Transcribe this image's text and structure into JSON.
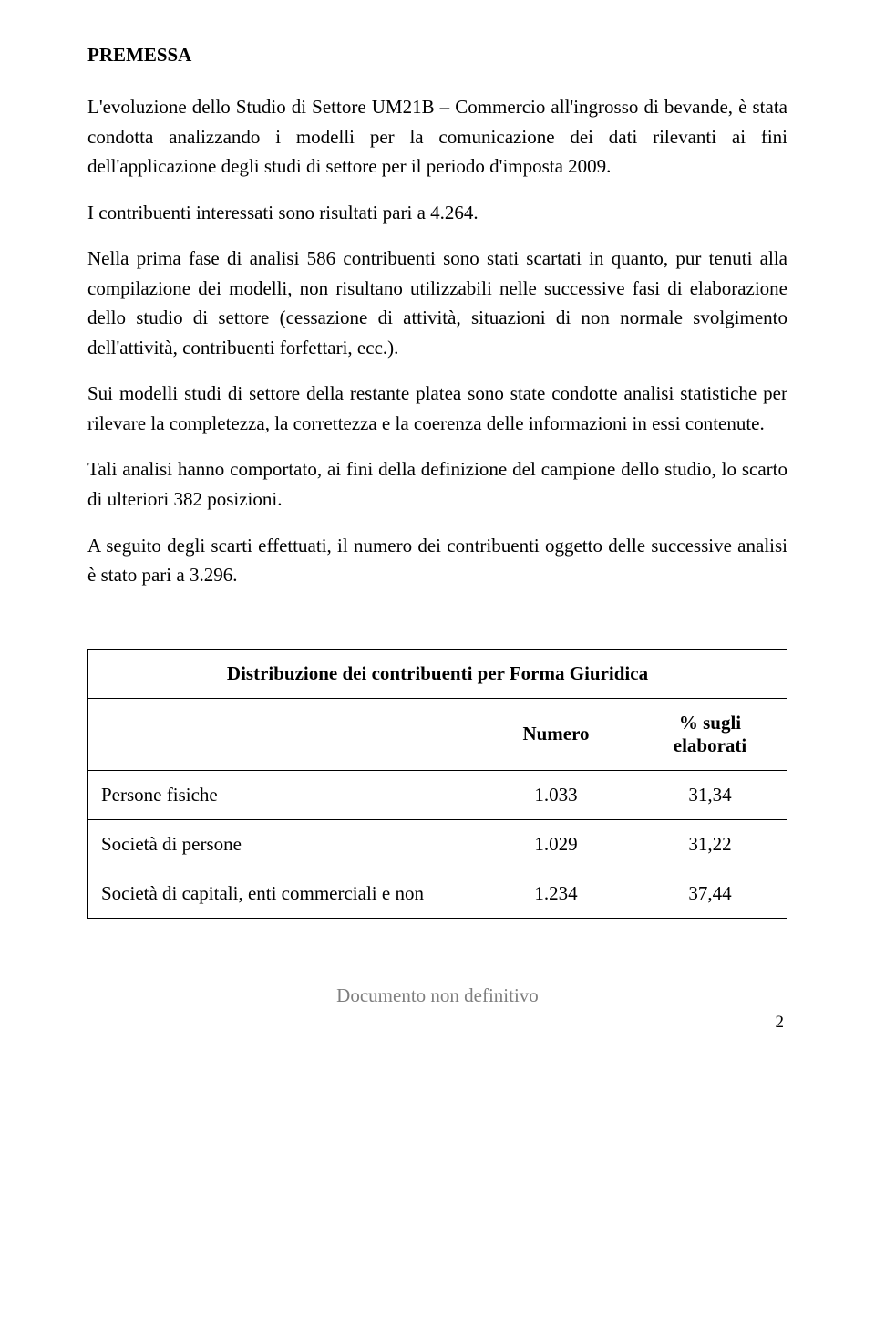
{
  "heading": "PREMESSA",
  "paragraphs": {
    "p1": "L'evoluzione dello Studio di Settore UM21B – Commercio all'ingrosso di bevande, è stata condotta analizzando i modelli per la comunicazione dei dati rilevanti ai fini dell'applicazione degli studi di settore per il periodo d'imposta 2009.",
    "p2": "I contribuenti interessati sono risultati pari a 4.264.",
    "p3": "Nella prima fase di analisi 586 contribuenti sono stati scartati in quanto, pur tenuti alla compilazione dei modelli, non risultano utilizzabili nelle successive fasi di elaborazione dello studio di settore (cessazione di attività, situazioni di non normale svolgimento dell'attività, contribuenti forfettari, ecc.).",
    "p4": "Sui modelli studi di settore della restante platea sono state condotte analisi statistiche per rilevare la completezza, la correttezza e la coerenza delle informazioni in essi contenute.",
    "p5": "Tali analisi hanno comportato, ai fini della definizione del campione dello studio, lo scarto di ulteriori 382 posizioni.",
    "p6": "A seguito degli scarti effettuati, il numero dei contribuenti oggetto delle successive analisi è stato pari a 3.296."
  },
  "table": {
    "title": "Distribuzione dei contribuenti per Forma Giuridica",
    "col_number": "Numero",
    "col_pct": "% sugli elaborati",
    "rows": [
      {
        "label": "Persone fisiche",
        "num": "1.033",
        "pct": "31,34"
      },
      {
        "label": "Società di persone",
        "num": "1.029",
        "pct": "31,22"
      },
      {
        "label": "Società di capitali, enti commerciali e non",
        "num": "1.234",
        "pct": "37,44"
      }
    ]
  },
  "footer_text": "Documento non definitivo",
  "page_number": "2"
}
